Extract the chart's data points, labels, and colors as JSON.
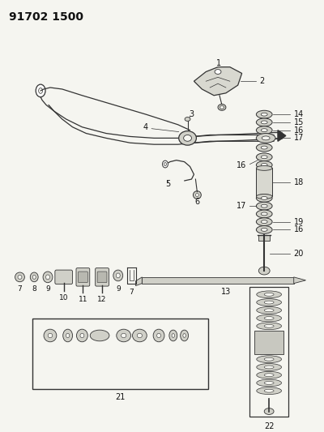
{
  "title": "91702 1500",
  "bg_color": "#f5f5f0",
  "line_color": "#333333",
  "text_color": "#111111",
  "title_fontsize": 10,
  "label_fontsize": 7,
  "figsize": [
    4.0,
    5.33
  ],
  "dpi": 100
}
